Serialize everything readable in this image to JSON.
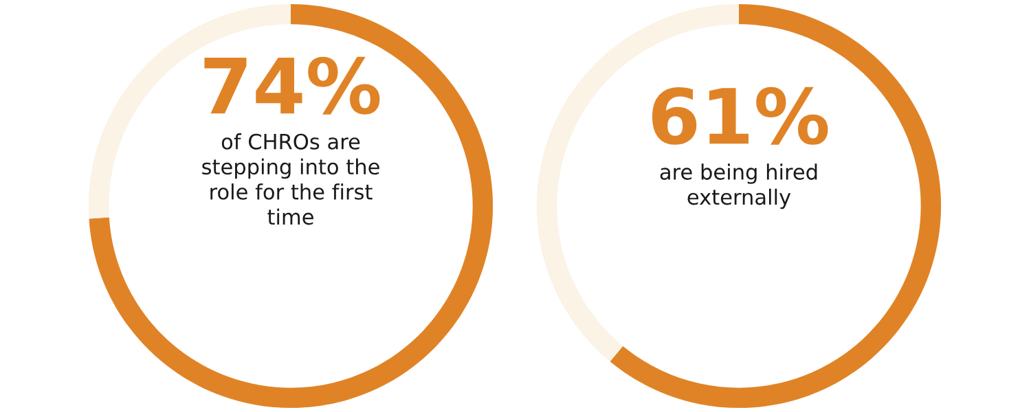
{
  "chart_data": [
    {
      "type": "donut",
      "categories": [
        null,
        null
      ],
      "values": [
        74,
        26
      ],
      "colors": [
        "#e08326",
        "#faf3e6"
      ],
      "value_labels": [
        "74%",
        null
      ],
      "annotations": [
        "of CHROs are stepping into the role for the first time"
      ]
    },
    {
      "type": "donut",
      "categories": [
        null,
        null
      ],
      "values": [
        61,
        39
      ],
      "colors": [
        "#e08326",
        "#faf3e6"
      ],
      "value_labels": [
        "61%",
        null
      ],
      "annotations": [
        "are being hired externally"
      ]
    }
  ]
}
